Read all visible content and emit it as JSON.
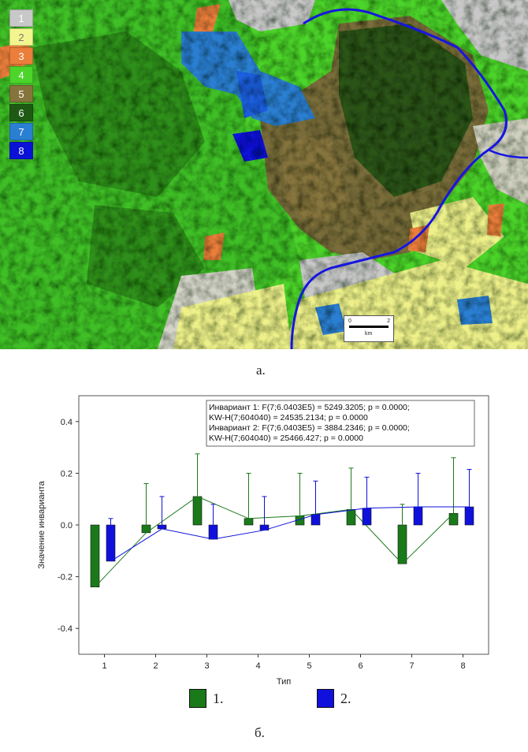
{
  "map": {
    "legend": [
      {
        "label": "1",
        "color": "#c8c8c8"
      },
      {
        "label": "2",
        "color": "#f3f58e"
      },
      {
        "label": "3",
        "color": "#ea7e3a"
      },
      {
        "label": "4",
        "color": "#4cd42a"
      },
      {
        "label": "5",
        "color": "#86743d"
      },
      {
        "label": "6",
        "color": "#1e5a14"
      },
      {
        "label": "7",
        "color": "#2b7fd3"
      },
      {
        "label": "8",
        "color": "#0a12d8"
      }
    ],
    "scale_bar": {
      "zero": "0",
      "end": "2",
      "unit": "km"
    }
  },
  "captions": {
    "a": "а.",
    "b": "б."
  },
  "chart_data": {
    "type": "bar",
    "categories": [
      "1",
      "2",
      "3",
      "4",
      "5",
      "6",
      "7",
      "8"
    ],
    "series": [
      {
        "name": "1.",
        "color": "#1a7a1a",
        "values": [
          -0.24,
          -0.03,
          0.11,
          0.025,
          0.035,
          0.06,
          -0.15,
          0.045
        ],
        "errors": [
          0.23,
          0.19,
          0.165,
          0.175,
          0.165,
          0.16,
          0.23,
          0.215
        ]
      },
      {
        "name": "2.",
        "color": "#1010dd",
        "values": [
          -0.14,
          -0.015,
          -0.055,
          -0.02,
          0.04,
          0.065,
          0.07,
          0.07
        ],
        "errors": [
          0.165,
          0.125,
          0.135,
          0.13,
          0.13,
          0.12,
          0.13,
          0.145
        ]
      }
    ],
    "xlabel": "Тип",
    "ylabel": "Значение инварианта",
    "ylim": [
      -0.5,
      0.5
    ],
    "yticks": [
      "0.4",
      "0.2",
      "0.0",
      "-0.2",
      "-0.4"
    ],
    "annotation": [
      "Инвариант 1:   F(7;6.0403E5) = 5249.3205; p = 0.0000;",
      "KW-H(7;604040) = 24535.2134; p = 0.0000",
      "Инвариант 2:   F(7;6.0403E5) = 3884.2346; p = 0.0000;",
      "KW-H(7;604040) = 25466.427; p = 0.0000"
    ],
    "grid": false
  }
}
